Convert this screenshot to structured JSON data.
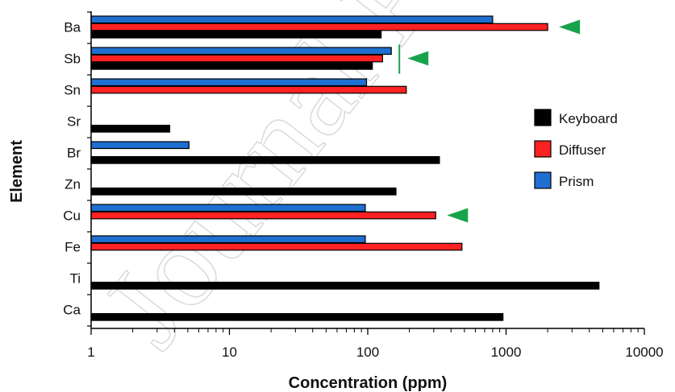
{
  "watermark": "Journal Pre",
  "chart_data": {
    "type": "bar",
    "orientation": "horizontal",
    "xscale": "log",
    "xlim": [
      1,
      10000
    ],
    "xticks": [
      "1",
      "10",
      "100",
      "1000",
      "10000"
    ],
    "xlabel": "Concentration (ppm)",
    "ylabel": "Element",
    "categories": [
      "Ba",
      "Sb",
      "Sn",
      "Sr",
      "Br",
      "Zn",
      "Cu",
      "Fe",
      "Ti",
      "Ca"
    ],
    "series": [
      {
        "name": "Prism",
        "color": "#1f6fd1",
        "values": [
          800,
          148,
          98,
          null,
          5.1,
          null,
          96,
          96,
          null,
          null
        ]
      },
      {
        "name": "Diffuser",
        "color": "#ff2222",
        "values": [
          2000,
          128,
          190,
          null,
          null,
          null,
          310,
          480,
          null,
          null
        ]
      },
      {
        "name": "Keyboard",
        "color": "#000000",
        "values": [
          125,
          108,
          null,
          3.7,
          330,
          160,
          null,
          null,
          4700,
          950
        ]
      }
    ],
    "legend": {
      "placement": "right",
      "order": [
        "Keyboard",
        "Diffuser",
        "Prism"
      ]
    },
    "annotations": [
      {
        "type": "triangle-marker",
        "category": "Ba",
        "color": "#17a34a"
      },
      {
        "type": "triangle-marker",
        "category": "Sb",
        "color": "#17a34a"
      },
      {
        "type": "triangle-marker",
        "category": "Cu",
        "color": "#17a34a"
      }
    ],
    "grid": false
  }
}
